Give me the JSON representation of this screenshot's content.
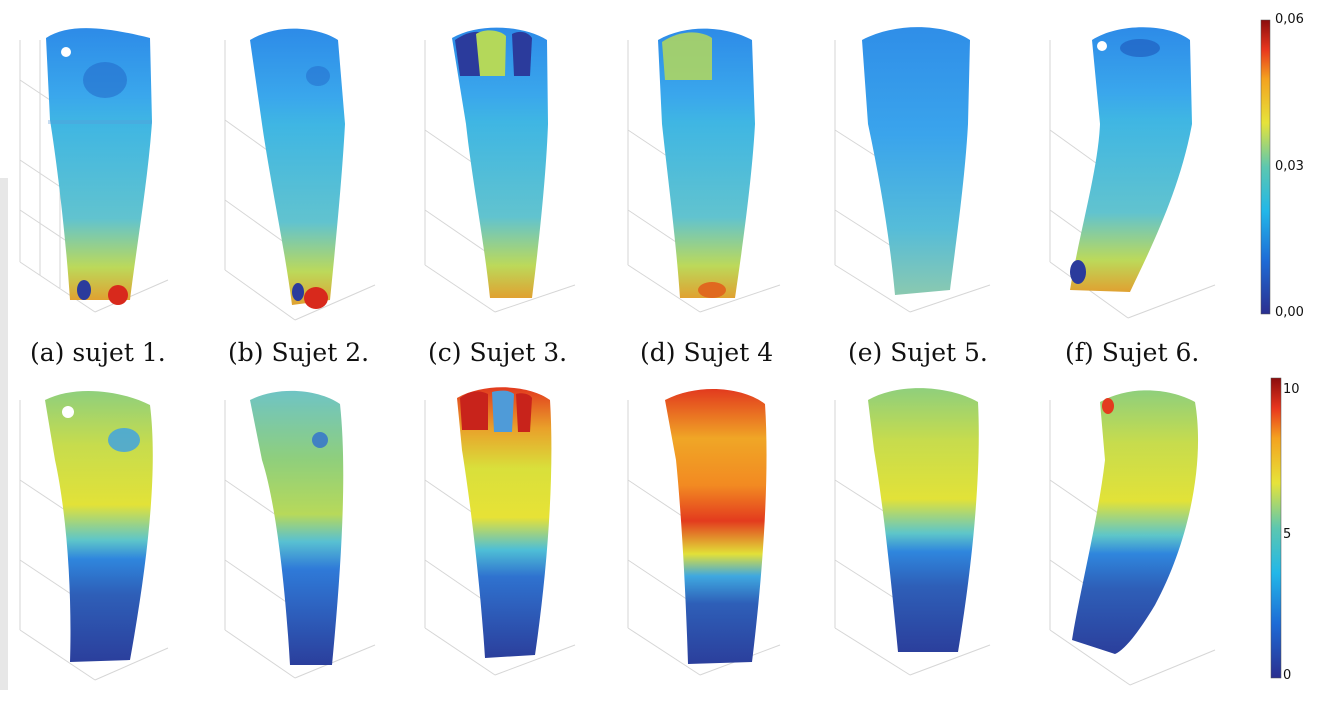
{
  "captions": [
    {
      "label": "(a) sujet 1."
    },
    {
      "label": "(b) Sujet 2."
    },
    {
      "label": "(c) Sujet 3."
    },
    {
      "label": "(d) Sujet 4"
    },
    {
      "label": "(e) Sujet 5."
    },
    {
      "label": "(f) Sujet 6."
    }
  ],
  "colorbar_top": {
    "min_label": "0,00",
    "mid_label": "0,03",
    "max_label": "0,06"
  },
  "colorbar_bottom": {
    "min_label": "0",
    "mid_label": "5",
    "max_label": "10"
  },
  "colormap": [
    "#2b2f8f",
    "#1e6bd6",
    "#22b7e8",
    "#5cc7b0",
    "#e6e33a",
    "#f4a21f",
    "#e8361e",
    "#8b0d0d"
  ]
}
